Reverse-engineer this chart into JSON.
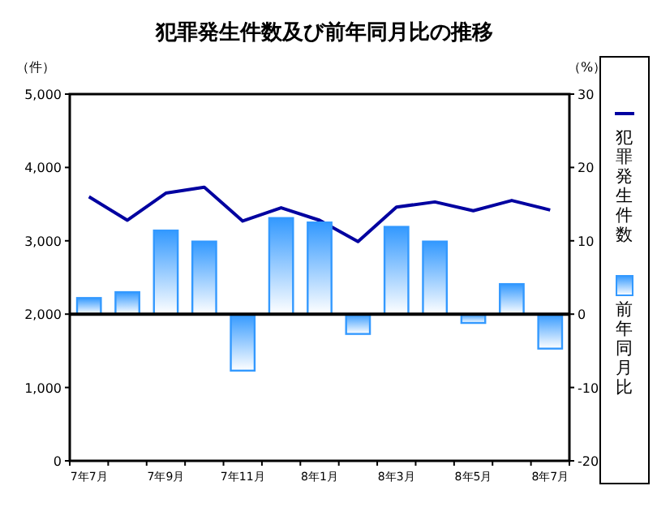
{
  "chart_data": {
    "type": "bar",
    "title": "犯罪発生件数及び前年同月比の推移",
    "ylabel": "（件）",
    "y2label": "（%）",
    "categories": [
      "7年7月",
      null,
      "7年9月",
      null,
      "7年11月",
      null,
      "8年1月",
      null,
      "8年3月",
      null,
      "8年5月",
      null,
      "8年7月"
    ],
    "series": [
      {
        "name": "犯罪発生件数",
        "type": "line",
        "color": "#0000a0",
        "values": [
          3600,
          3280,
          3650,
          3730,
          3270,
          3450,
          3280,
          2990,
          3460,
          3530,
          3410,
          3550,
          3420
        ]
      },
      {
        "name": "前年同月比",
        "axis": "y2",
        "color": "#3399ff",
        "values": [
          2.2,
          3.0,
          11.4,
          9.9,
          -7.7,
          13.1,
          12.5,
          -2.7,
          11.9,
          9.9,
          -1.2,
          4.1,
          -4.7
        ]
      }
    ],
    "ylim": [
      0,
      5000
    ],
    "yticks": [
      {
        "value": 0,
        "label": "0"
      },
      {
        "value": 1000,
        "label": "1,000"
      },
      {
        "value": 2000,
        "label": "2,000"
      },
      {
        "value": 3000,
        "label": "3,000"
      },
      {
        "value": 4000,
        "label": "4,000"
      },
      {
        "value": 5000,
        "label": "5,000"
      }
    ],
    "y2lim": [
      -20,
      30
    ],
    "y2ticks": [
      -20,
      -10,
      0,
      10,
      20,
      30
    ],
    "ref_lines": [
      {
        "axis": "y2",
        "value": 0,
        "color": "#000000"
      }
    ],
    "grid": false,
    "legend": "right",
    "marker": "none",
    "line_style": "solid"
  }
}
